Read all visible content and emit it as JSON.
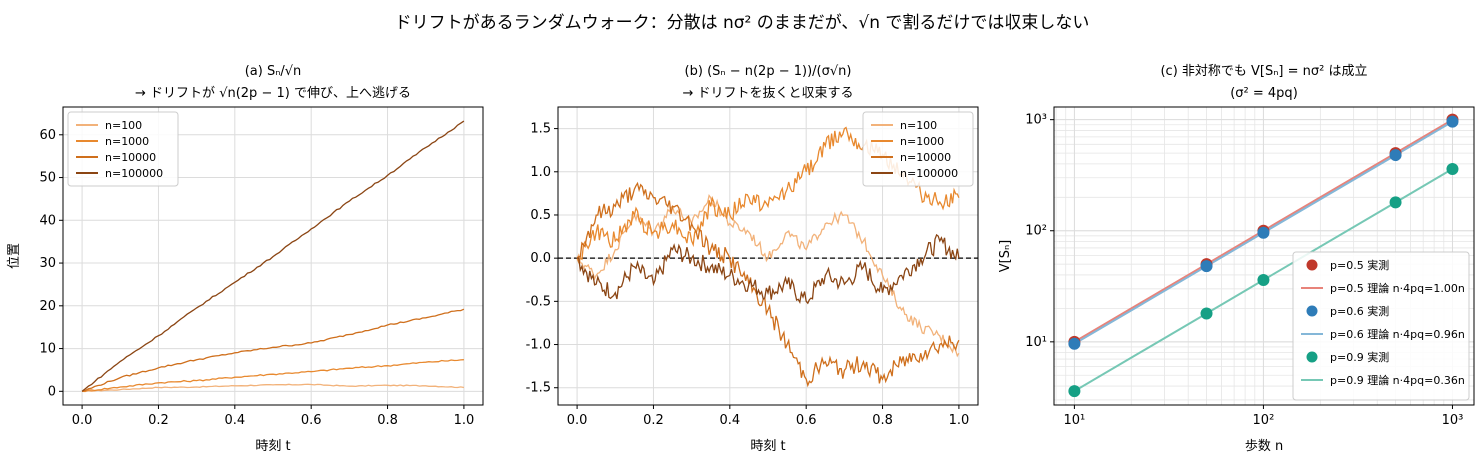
{
  "figure": {
    "suptitle": "ドリフトがあるランダムウォーク：分散は nσ² のままだが、√n で割るだけでは収束しない"
  },
  "chart_data": [
    {
      "id": "a",
      "type": "line",
      "title_line1": "(a) Sₙ/√n",
      "title_line2": "→ ドリフトが √n(2p − 1) で伸び、上へ逃げる",
      "xlabel": "時刻 t",
      "ylabel": "位置",
      "xlim": [
        -0.05,
        1.05
      ],
      "ylim": [
        -3.2,
        66.5
      ],
      "xticks": [
        0.0,
        0.2,
        0.4,
        0.6,
        0.8,
        1.0
      ],
      "xtick_labels": [
        "0.0",
        "0.2",
        "0.4",
        "0.6",
        "0.8",
        "1.0"
      ],
      "yticks": [
        0,
        10,
        20,
        30,
        40,
        50,
        60
      ],
      "ytick_labels": [
        "0",
        "10",
        "20",
        "30",
        "40",
        "50",
        "60"
      ],
      "grid": true,
      "legend_position": "upper-left",
      "series": [
        {
          "name": "n=100",
          "color": "#f2b27a",
          "x": [
            0,
            0.1,
            0.2,
            0.3,
            0.4,
            0.5,
            0.6,
            0.7,
            0.8,
            0.9,
            1.0
          ],
          "y": [
            0,
            0.4,
            0.9,
            1.0,
            1.3,
            1.5,
            1.6,
            1.2,
            1.4,
            1.3,
            0.9
          ]
        },
        {
          "name": "n=1000",
          "color": "#e8892f",
          "x": [
            0,
            0.1,
            0.2,
            0.3,
            0.4,
            0.5,
            0.6,
            0.7,
            0.8,
            0.9,
            1.0
          ],
          "y": [
            0,
            1.0,
            2.0,
            2.5,
            3.3,
            4.0,
            4.6,
            5.4,
            6.0,
            6.8,
            7.4
          ]
        },
        {
          "name": "n=10000",
          "color": "#cf6f1c",
          "x": [
            0,
            0.1,
            0.2,
            0.3,
            0.4,
            0.5,
            0.6,
            0.7,
            0.8,
            0.9,
            1.0
          ],
          "y": [
            0,
            3.2,
            5.5,
            7.4,
            9.0,
            10.3,
            11.3,
            13.3,
            15.5,
            17.2,
            19.2
          ]
        },
        {
          "name": "n=100000",
          "color": "#8b4513",
          "x": [
            0,
            0.1,
            0.2,
            0.3,
            0.4,
            0.5,
            0.6,
            0.7,
            0.8,
            0.9,
            1.0
          ],
          "y": [
            0,
            7.0,
            13.0,
            19.5,
            25.5,
            31.5,
            38.0,
            44.5,
            50.5,
            57.0,
            63.2
          ]
        }
      ]
    },
    {
      "id": "b",
      "type": "line",
      "title_line1": "(b) (Sₙ − n(2p − 1))/(σ√n)",
      "title_line2": "→ ドリフトを抜くと収束する",
      "xlabel": "時刻 t",
      "ylabel": "",
      "xlim": [
        -0.05,
        1.05
      ],
      "ylim": [
        -1.7,
        1.75
      ],
      "xticks": [
        0.0,
        0.2,
        0.4,
        0.6,
        0.8,
        1.0
      ],
      "xtick_labels": [
        "0.0",
        "0.2",
        "0.4",
        "0.6",
        "0.8",
        "1.0"
      ],
      "yticks": [
        -1.5,
        -1.0,
        -0.5,
        0.0,
        0.5,
        1.0,
        1.5
      ],
      "ytick_labels": [
        "-1.5",
        "-1.0",
        "-0.5",
        "0.0",
        "0.5",
        "1.0",
        "1.5"
      ],
      "grid": true,
      "reference_line_y": 0,
      "legend_position": "upper-right",
      "series": [
        {
          "name": "n=100",
          "color": "#f2b27a",
          "x": [
            0,
            0.05,
            0.1,
            0.15,
            0.2,
            0.25,
            0.3,
            0.35,
            0.4,
            0.45,
            0.5,
            0.55,
            0.6,
            0.65,
            0.7,
            0.75,
            0.8,
            0.85,
            0.9,
            0.95,
            1.0
          ],
          "y": [
            0,
            -0.2,
            0.1,
            0.5,
            0.3,
            0.6,
            0.4,
            0.7,
            0.4,
            0.3,
            0.0,
            0.3,
            0.1,
            0.4,
            0.5,
            0.2,
            -0.2,
            -0.6,
            -0.8,
            -0.9,
            -1.1
          ]
        },
        {
          "name": "n=1000",
          "color": "#e8892f",
          "x": [
            0,
            0.05,
            0.1,
            0.15,
            0.2,
            0.25,
            0.3,
            0.35,
            0.4,
            0.45,
            0.5,
            0.55,
            0.6,
            0.65,
            0.7,
            0.75,
            0.8,
            0.85,
            0.9,
            0.95,
            1.0
          ],
          "y": [
            0,
            0.3,
            0.2,
            0.5,
            0.3,
            0.4,
            0.2,
            0.6,
            0.5,
            0.7,
            0.6,
            0.8,
            1.0,
            1.3,
            1.5,
            1.3,
            1.2,
            1.0,
            0.75,
            0.65,
            0.7
          ]
        },
        {
          "name": "n=10000",
          "color": "#cf6f1c",
          "x": [
            0,
            0.05,
            0.1,
            0.15,
            0.2,
            0.25,
            0.3,
            0.35,
            0.4,
            0.45,
            0.5,
            0.55,
            0.6,
            0.65,
            0.7,
            0.75,
            0.8,
            0.85,
            0.9,
            0.95,
            1.0
          ],
          "y": [
            0,
            0.5,
            0.6,
            0.8,
            0.7,
            0.6,
            0.4,
            0.1,
            0.0,
            -0.3,
            -0.6,
            -1.0,
            -1.4,
            -1.2,
            -1.3,
            -1.2,
            -1.4,
            -1.2,
            -1.1,
            -1.0,
            -0.95
          ]
        },
        {
          "name": "n=100000",
          "color": "#8b4513",
          "x": [
            0,
            0.05,
            0.1,
            0.15,
            0.2,
            0.25,
            0.3,
            0.35,
            0.4,
            0.45,
            0.5,
            0.55,
            0.6,
            0.65,
            0.7,
            0.75,
            0.8,
            0.85,
            0.9,
            0.95,
            1.0
          ],
          "y": [
            0,
            -0.3,
            -0.4,
            -0.1,
            -0.3,
            0.1,
            0.0,
            -0.1,
            -0.2,
            -0.3,
            -0.4,
            -0.3,
            -0.5,
            -0.2,
            -0.3,
            -0.1,
            -0.4,
            -0.2,
            0.0,
            0.2,
            0.0
          ]
        }
      ]
    },
    {
      "id": "c",
      "type": "scatter",
      "scale": "log-log",
      "title_line1": "(c) 非対称でも V[Sₙ] = nσ² は成立",
      "title_line2": "(σ² = 4pq)",
      "xlabel": "歩数 n",
      "ylabel": "V[Sₙ]",
      "xlim": [
        7.8,
        1300
      ],
      "ylim": [
        2.7,
        1300
      ],
      "xticks": [
        10,
        100,
        1000
      ],
      "xtick_labels": [
        "10¹",
        "10²",
        "10³"
      ],
      "yticks": [
        10,
        100,
        1000
      ],
      "ytick_labels": [
        "10¹",
        "10²",
        "10³"
      ],
      "grid": true,
      "legend_position": "lower-right",
      "x": [
        10,
        50,
        100,
        500,
        1000
      ],
      "series": [
        {
          "name": "p=0.5 実測",
          "kind": "points",
          "color": "#c0392b",
          "values": [
            10,
            50,
            100,
            500,
            1000
          ]
        },
        {
          "name": "p=0.5 理論 n·4pq=1.00n",
          "kind": "line",
          "color": "#e8837a",
          "values": [
            10,
            50,
            100,
            500,
            1000
          ]
        },
        {
          "name": "p=0.6 実測",
          "kind": "points",
          "color": "#2e7cb8",
          "values": [
            9.6,
            48,
            96,
            480,
            960
          ]
        },
        {
          "name": "p=0.6 理論 n·4pq=0.96n",
          "kind": "line",
          "color": "#84b7d8",
          "values": [
            9.6,
            48,
            96,
            480,
            960
          ]
        },
        {
          "name": "p=0.9 実測",
          "kind": "points",
          "color": "#16a085",
          "values": [
            3.6,
            18,
            36,
            180,
            360
          ]
        },
        {
          "name": "p=0.9 理論 n·4pq=0.36n",
          "kind": "line",
          "color": "#76c8b5",
          "values": [
            3.6,
            18,
            36,
            180,
            360
          ]
        }
      ]
    }
  ]
}
